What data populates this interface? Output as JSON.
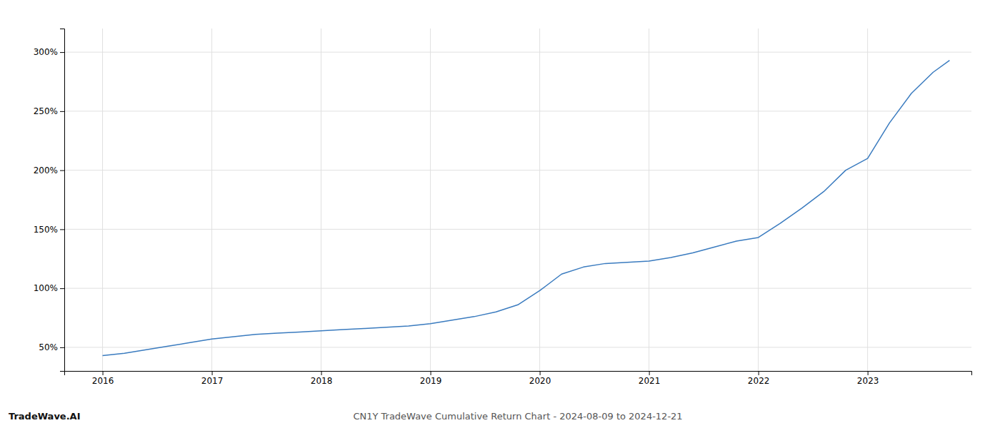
{
  "chart_data": {
    "type": "line",
    "title": "CN1Y TradeWave Cumulative Return Chart - 2024-08-09 to 2024-12-21",
    "annotations": [
      "TradeWave.AI"
    ],
    "color": "#3a7bbf",
    "grid": true,
    "x": [
      2016.0,
      2016.2,
      2016.4,
      2016.6,
      2016.8,
      2017.0,
      2017.2,
      2017.4,
      2017.6,
      2017.8,
      2018.0,
      2018.2,
      2018.4,
      2018.6,
      2018.8,
      2019.0,
      2019.2,
      2019.4,
      2019.6,
      2019.8,
      2020.0,
      2020.2,
      2020.4,
      2020.6,
      2020.8,
      2021.0,
      2021.2,
      2021.4,
      2021.6,
      2021.8,
      2022.0,
      2022.2,
      2022.4,
      2022.6,
      2022.8,
      2023.0,
      2023.2,
      2023.4,
      2023.6,
      2023.75
    ],
    "values": [
      43,
      45,
      48,
      51,
      54,
      57,
      59,
      61,
      62,
      63,
      64,
      65,
      66,
      67,
      68,
      70,
      73,
      76,
      80,
      86,
      98,
      112,
      118,
      121,
      122,
      123,
      126,
      130,
      135,
      140,
      143,
      155,
      168,
      182,
      200,
      210,
      240,
      265,
      283,
      293
    ],
    "xlim": [
      2015.65,
      2023.95
    ],
    "ylim": [
      30,
      320
    ],
    "xticks": [
      2016,
      2017,
      2018,
      2019,
      2020,
      2021,
      2022,
      2023
    ],
    "yticks": [
      {
        "value": 50,
        "label": "50%"
      },
      {
        "value": 100,
        "label": "100%"
      },
      {
        "value": 150,
        "label": "150%"
      },
      {
        "value": 200,
        "label": "200%"
      },
      {
        "value": 250,
        "label": "250%"
      },
      {
        "value": 300,
        "label": "300%"
      }
    ]
  }
}
